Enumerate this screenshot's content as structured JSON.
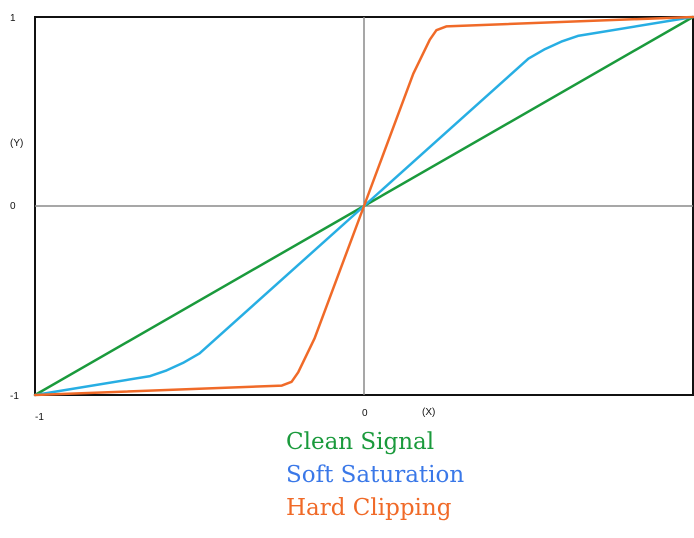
{
  "chart_data": {
    "type": "line",
    "title": "",
    "xlabel": "(X)",
    "ylabel": "(Y)",
    "xlim": [
      -1,
      1
    ],
    "ylim": [
      -1,
      1
    ],
    "x_tick_labels": [
      "-1",
      "0"
    ],
    "y_tick_labels": [
      "1",
      "0",
      "-1"
    ],
    "grid": false,
    "legend_position": "bottom",
    "series": [
      {
        "name": "Clean Signal",
        "color": "#1a9a3c",
        "x": [
          -1,
          0,
          1
        ],
        "y": [
          -1,
          0,
          1
        ]
      },
      {
        "name": "Soft Saturation",
        "color": "#27aee3",
        "x": [
          -1,
          -0.65,
          -0.6,
          -0.55,
          -0.5,
          0,
          0.5,
          0.55,
          0.6,
          0.65,
          1
        ],
        "y": [
          -1,
          -0.9,
          -0.87,
          -0.83,
          -0.78,
          0,
          0.78,
          0.83,
          0.87,
          0.9,
          1
        ]
      },
      {
        "name": "Hard Clipping",
        "color": "#f06a28",
        "x": [
          -1,
          -0.25,
          -0.22,
          -0.2,
          -0.15,
          0,
          0.15,
          0.2,
          0.22,
          0.25,
          1
        ],
        "y": [
          -1,
          -0.95,
          -0.93,
          -0.88,
          -0.7,
          0,
          0.7,
          0.88,
          0.93,
          0.95,
          1
        ]
      }
    ]
  },
  "legend": {
    "items": [
      {
        "label": "Clean Signal",
        "color": "#1a9a3c"
      },
      {
        "label": "Soft Saturation",
        "color": "#3a78e8"
      },
      {
        "label": "Hard Clipping",
        "color": "#f06a28"
      }
    ]
  }
}
